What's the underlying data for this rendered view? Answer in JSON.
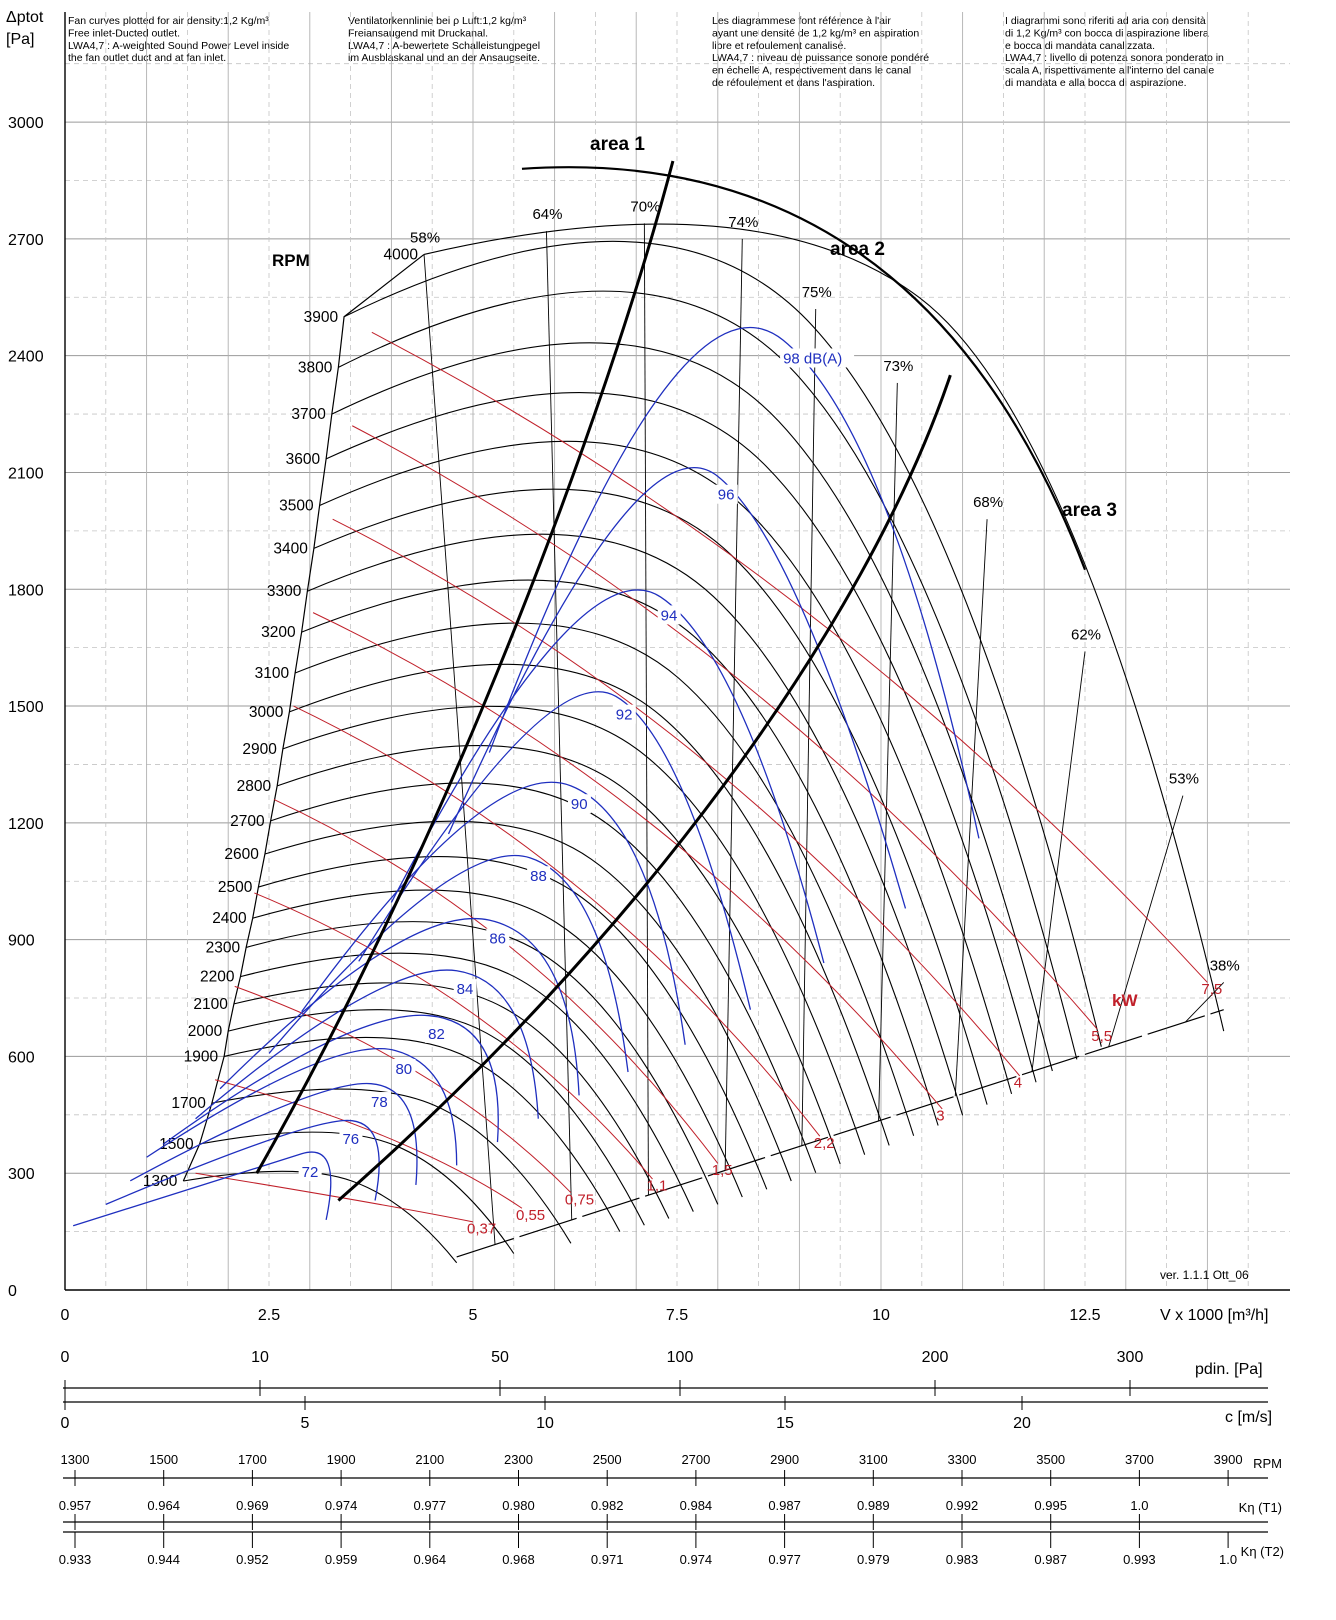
{
  "chart_data": {
    "type": "line",
    "ylabel_line1": "Δptot",
    "ylabel_line2": "[Pa]",
    "xlabel": "V x 1000 [m³/h]",
    "xlim": [
      0,
      15
    ],
    "ylim": [
      0,
      3000
    ],
    "x_ticks": [
      0,
      2.5,
      5,
      7.5,
      10,
      12.5
    ],
    "x_tick_labels": [
      "0",
      "2.5",
      "5",
      "7.5",
      "10",
      "12.5"
    ],
    "y_ticks": [
      0,
      300,
      600,
      900,
      1200,
      1500,
      1800,
      2100,
      2400,
      2700,
      3000
    ],
    "y_tick_labels": [
      "0",
      "300",
      "600",
      "900",
      "1200",
      "1500",
      "1800",
      "2100",
      "2400",
      "2700",
      "3000"
    ],
    "grid": true,
    "notes": [
      [
        "Fan curves plotted for air density:1,2 Kg/m³",
        "Free inlet-Ducted outlet.",
        "LWA4,7 : A-weighted Sound Power Level inside",
        "the fan outlet duct and at fan inlet."
      ],
      [
        "Ventilatorkennlinie bei ρ Luft:1,2 kg/m³",
        "Freiansaugend mit Druckanal.",
        "LWA4,7 : A-bewertete Schalleistungpegel",
        "im Ausblaskanal und an der Ansaugseite."
      ],
      [
        "Les diagrammese font référence à l'air",
        "ayant une densité de 1,2 kg/m³ en aspiration",
        "libre et refoulement canalisé.",
        "LWA4,7 : niveau de puissance sonore pondéré",
        "en échelle A, respectivement dans le canal",
        "de réfoulement et dans l'aspiration."
      ],
      [
        "I diagrammi sono riferiti ad aria con densità",
        "di 1,2 Kg/m³ con bocca di aspirazione libera",
        "e bocca di mandata canalizzata.",
        "LWA4,7 : livello di potenza sonora ponderato in",
        "scala A, rispettivamente all'interno del canale",
        "di mandata e alla bocca di aspirazione."
      ]
    ],
    "rpm_title": "RPM",
    "rpm_curves": [
      {
        "rpm": "1300",
        "x_start": 1.45,
        "x_end": 4.8,
        "y_start": 280,
        "y_peak": 300
      },
      {
        "rpm": "1500",
        "x_start": 1.65,
        "x_end": 5.5,
        "y_start": 375,
        "y_peak": 400
      },
      {
        "rpm": "1700",
        "x_start": 1.8,
        "x_end": 6.2,
        "y_start": 480,
        "y_peak": 510
      },
      {
        "rpm": "1900",
        "x_start": 1.95,
        "x_end": 6.8,
        "y_start": 600,
        "y_peak": 640
      },
      {
        "rpm": "2000",
        "x_start": 2.0,
        "x_end": 7.1,
        "y_start": 665,
        "y_peak": 710
      },
      {
        "rpm": "2100",
        "x_start": 2.07,
        "x_end": 7.4,
        "y_start": 735,
        "y_peak": 780
      },
      {
        "rpm": "2200",
        "x_start": 2.15,
        "x_end": 7.7,
        "y_start": 805,
        "y_peak": 855
      },
      {
        "rpm": "2300",
        "x_start": 2.22,
        "x_end": 8.0,
        "y_start": 880,
        "y_peak": 935
      },
      {
        "rpm": "2400",
        "x_start": 2.3,
        "x_end": 8.3,
        "y_start": 955,
        "y_peak": 1015
      },
      {
        "rpm": "2500",
        "x_start": 2.37,
        "x_end": 8.6,
        "y_start": 1035,
        "y_peak": 1100
      },
      {
        "rpm": "2600",
        "x_start": 2.45,
        "x_end": 8.9,
        "y_start": 1120,
        "y_peak": 1190
      },
      {
        "rpm": "2700",
        "x_start": 2.52,
        "x_end": 9.2,
        "y_start": 1205,
        "y_peak": 1285
      },
      {
        "rpm": "2800",
        "x_start": 2.6,
        "x_end": 9.5,
        "y_start": 1295,
        "y_peak": 1380
      },
      {
        "rpm": "2900",
        "x_start": 2.67,
        "x_end": 9.8,
        "y_start": 1390,
        "y_peak": 1480
      },
      {
        "rpm": "3000",
        "x_start": 2.75,
        "x_end": 10.1,
        "y_start": 1485,
        "y_peak": 1585
      },
      {
        "rpm": "3100",
        "x_start": 2.82,
        "x_end": 10.4,
        "y_start": 1585,
        "y_peak": 1690
      },
      {
        "rpm": "3200",
        "x_start": 2.9,
        "x_end": 10.7,
        "y_start": 1690,
        "y_peak": 1800
      },
      {
        "rpm": "3300",
        "x_start": 2.97,
        "x_end": 11.0,
        "y_start": 1795,
        "y_peak": 1915
      },
      {
        "rpm": "3400",
        "x_start": 3.05,
        "x_end": 11.3,
        "y_start": 1905,
        "y_peak": 2030
      },
      {
        "rpm": "3500",
        "x_start": 3.12,
        "x_end": 11.6,
        "y_start": 2015,
        "y_peak": 2150
      },
      {
        "rpm": "3600",
        "x_start": 3.2,
        "x_end": 11.9,
        "y_start": 2135,
        "y_peak": 2275
      },
      {
        "rpm": "3700",
        "x_start": 3.27,
        "x_end": 12.1,
        "y_start": 2250,
        "y_peak": 2400
      },
      {
        "rpm": "3800",
        "x_start": 3.35,
        "x_end": 12.4,
        "y_start": 2370,
        "y_peak": 2530
      },
      {
        "rpm": "3900",
        "x_start": 3.42,
        "x_end": 12.7,
        "y_start": 2500,
        "y_peak": 2660
      },
      {
        "rpm": "4000",
        "x_start": 4.4,
        "x_end": 14.2,
        "y_start": 2660,
        "y_peak": 2740
      }
    ],
    "efficiency_labels": [
      "58%",
      "64%",
      "70%",
      "74%",
      "75%",
      "73%",
      "68%",
      "62%",
      "53%",
      "38%"
    ],
    "efficiency_lines": [
      {
        "label": "58%",
        "x_top": 4.4,
        "y_top": 2660
      },
      {
        "label": "64%",
        "x_top": 5.9,
        "y_top": 2720
      },
      {
        "label": "70%",
        "x_top": 7.1,
        "y_top": 2740
      },
      {
        "label": "74%",
        "x_top": 8.3,
        "y_top": 2700
      },
      {
        "label": "75%",
        "x_top": 9.2,
        "y_top": 2520
      },
      {
        "label": "73%",
        "x_top": 10.2,
        "y_top": 2330
      },
      {
        "label": "68%",
        "x_top": 11.3,
        "y_top": 1980
      },
      {
        "label": "62%",
        "x_top": 12.5,
        "y_top": 1640
      },
      {
        "label": "53%",
        "x_top": 13.7,
        "y_top": 1270
      },
      {
        "label": "38%",
        "x_top": 14.2,
        "y_top": 790
      }
    ],
    "sound_levels": [
      {
        "label": "72",
        "x": 2.9,
        "y": 290,
        "peak_x": 2.4,
        "peak_y": 300,
        "end_x": 3.2,
        "end_y": 180
      },
      {
        "label": "76",
        "x": 3.4,
        "y": 375,
        "peak_x": 2.8,
        "peak_y": 400,
        "end_x": 3.8,
        "end_y": 230
      },
      {
        "label": "78",
        "x": 3.75,
        "y": 470,
        "peak_x": 3.1,
        "peak_y": 510,
        "end_x": 4.3,
        "end_y": 270
      },
      {
        "label": "80",
        "x": 4.05,
        "y": 555,
        "peak_x": 3.3,
        "peak_y": 620,
        "end_x": 4.8,
        "end_y": 320
      },
      {
        "label": "82",
        "x": 4.45,
        "y": 645,
        "peak_x": 3.5,
        "peak_y": 680,
        "end_x": 5.3,
        "end_y": 380
      },
      {
        "label": "84",
        "x": 4.8,
        "y": 760,
        "peak_x": 3.9,
        "peak_y": 800,
        "end_x": 5.8,
        "end_y": 440
      },
      {
        "label": "86",
        "x": 5.2,
        "y": 890,
        "peak_x": 4.2,
        "peak_y": 940,
        "end_x": 6.3,
        "end_y": 500
      },
      {
        "label": "88",
        "x": 5.7,
        "y": 1050,
        "peak_x": 4.8,
        "peak_y": 1105,
        "end_x": 6.9,
        "end_y": 560
      },
      {
        "label": "90",
        "x": 6.2,
        "y": 1235,
        "peak_x": 5.2,
        "peak_y": 1300,
        "end_x": 7.6,
        "end_y": 630
      },
      {
        "label": "92",
        "x": 6.75,
        "y": 1465,
        "peak_x": 5.9,
        "peak_y": 1535,
        "end_x": 8.4,
        "end_y": 720
      },
      {
        "label": "94",
        "x": 7.3,
        "y": 1720,
        "peak_x": 6.3,
        "peak_y": 1810,
        "end_x": 9.3,
        "end_y": 840
      },
      {
        "label": "96",
        "x": 8.0,
        "y": 2030,
        "peak_x": 7.0,
        "peak_y": 2130,
        "end_x": 10.3,
        "end_y": 980
      },
      {
        "label": "98 dB(A)",
        "x": 8.8,
        "y": 2380,
        "peak_x": 7.5,
        "peak_y": 2510,
        "end_x": 11.2,
        "end_y": 1160
      }
    ],
    "power_labels": [
      {
        "label": "0,37",
        "x": 5.0,
        "y": 145
      },
      {
        "label": "0,55",
        "x": 5.6,
        "y": 180
      },
      {
        "label": "0,75",
        "x": 6.2,
        "y": 220
      },
      {
        "label": "1,1",
        "x": 7.2,
        "y": 255
      },
      {
        "label": "1,5",
        "x": 8.0,
        "y": 295
      },
      {
        "label": "2,2",
        "x": 9.25,
        "y": 365
      },
      {
        "label": "3",
        "x": 10.75,
        "y": 435
      },
      {
        "label": "4",
        "x": 11.7,
        "y": 520
      },
      {
        "label": "5,5",
        "x": 12.65,
        "y": 640
      },
      {
        "label": "7,5",
        "x": 14.0,
        "y": 760
      }
    ],
    "power_unit": "kW",
    "area_labels": [
      "area 1",
      "area 2",
      "area 3"
    ],
    "version_text": "ver. 1.1.1 Ott_06",
    "pdin_axis": {
      "label": "pdin. [Pa]",
      "ticks": [
        "0",
        "10",
        "50",
        "100",
        "200",
        "300"
      ]
    },
    "c_axis": {
      "label": "c [m/s]",
      "ticks": [
        "0",
        "5",
        "10",
        "15",
        "20"
      ]
    },
    "rpm_axis": {
      "label": "RPM",
      "ticks": [
        "1300",
        "1500",
        "1700",
        "1900",
        "2100",
        "2300",
        "2500",
        "2700",
        "2900",
        "3100",
        "3300",
        "3500",
        "3700",
        "3900"
      ]
    },
    "k_t1_axis": {
      "label": "Kη (T1)",
      "ticks": [
        "0.957",
        "0.964",
        "0.969",
        "0.974",
        "0.977",
        "0.980",
        "0.982",
        "0.984",
        "0.987",
        "0.989",
        "0.992",
        "0.995",
        "1.0"
      ]
    },
    "k_t2_axis": {
      "label": "Kη (T2)",
      "ticks": [
        "0.933",
        "0.944",
        "0.952",
        "0.959",
        "0.964",
        "0.968",
        "0.971",
        "0.974",
        "0.977",
        "0.979",
        "0.983",
        "0.987",
        "0.993",
        "1.0"
      ]
    }
  }
}
